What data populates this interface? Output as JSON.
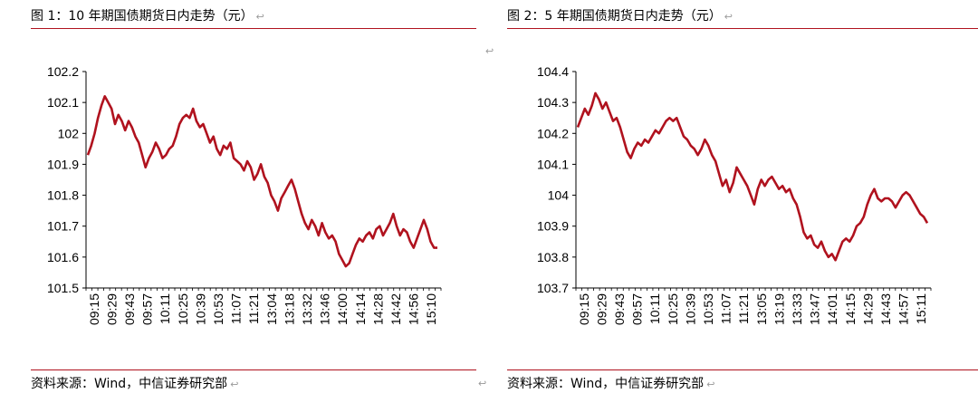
{
  "chart_data": [
    {
      "type": "line",
      "title": "图 1：10 年期国债期货日内走势（元）",
      "source": "资料来源：Wind，中信证券研究部",
      "xlabel": "",
      "ylabel": "",
      "ylim": [
        101.5,
        102.2
      ],
      "yticks": [
        "101.5",
        "101.6",
        "101.7",
        "101.8",
        "101.9",
        "102",
        "102.1",
        "102.2"
      ],
      "xtick_labels": [
        "09:15",
        "09:29",
        "09:43",
        "09:57",
        "10:11",
        "10:25",
        "10:39",
        "10:53",
        "11:07",
        "11:21",
        "13:04",
        "13:18",
        "13:32",
        "13:46",
        "14:00",
        "14:14",
        "14:28",
        "14:42",
        "14:56",
        "15:10"
      ],
      "color": "#b0121e",
      "grid": false,
      "legend": "none",
      "series": [
        {
          "values": [
            101.93,
            101.96,
            102.0,
            102.05,
            102.09,
            102.12,
            102.1,
            102.08,
            102.03,
            102.06,
            102.04,
            102.01,
            102.04,
            102.02,
            101.99,
            101.97,
            101.93,
            101.89,
            101.92,
            101.94,
            101.97,
            101.95,
            101.92,
            101.93,
            101.95,
            101.96,
            101.99,
            102.03,
            102.05,
            102.06,
            102.05,
            102.08,
            102.04,
            102.02,
            102.03,
            102.0,
            101.97,
            101.99,
            101.95,
            101.93,
            101.96,
            101.95,
            101.97,
            101.92,
            101.91,
            101.9,
            101.88,
            101.91,
            101.89,
            101.85,
            101.87,
            101.9,
            101.86,
            101.84,
            101.8,
            101.78,
            101.75,
            101.79,
            101.81,
            101.83,
            101.85,
            101.82,
            101.78,
            101.74,
            101.71,
            101.69,
            101.72,
            101.7,
            101.67,
            101.71,
            101.68,
            101.66,
            101.67,
            101.65,
            101.61,
            101.59,
            101.57,
            101.58,
            101.61,
            101.64,
            101.66,
            101.65,
            101.67,
            101.68,
            101.66,
            101.69,
            101.7,
            101.67,
            101.69,
            101.71,
            101.74,
            101.7,
            101.67,
            101.69,
            101.68,
            101.65,
            101.63,
            101.66,
            101.69,
            101.72,
            101.69,
            101.65,
            101.63,
            101.63
          ]
        }
      ]
    },
    {
      "type": "line",
      "title": "图 2：5 年期国债期货日内走势（元）",
      "source": "资料来源：Wind，中信证券研究部",
      "xlabel": "",
      "ylabel": "",
      "ylim": [
        103.7,
        104.4
      ],
      "yticks": [
        "103.7",
        "103.8",
        "103.9",
        "104",
        "104.1",
        "104.2",
        "104.3",
        "104.4"
      ],
      "xtick_labels": [
        "09:15",
        "09:29",
        "09:43",
        "09:57",
        "10:11",
        "10:25",
        "10:39",
        "10:53",
        "11:07",
        "11:21",
        "13:05",
        "13:19",
        "13:33",
        "13:47",
        "14:01",
        "14:15",
        "14:29",
        "14:43",
        "14:57",
        "15:11"
      ],
      "color": "#b0121e",
      "grid": false,
      "legend": "none",
      "series": [
        {
          "values": [
            104.22,
            104.25,
            104.28,
            104.26,
            104.29,
            104.33,
            104.31,
            104.28,
            104.3,
            104.27,
            104.24,
            104.25,
            104.22,
            104.18,
            104.14,
            104.12,
            104.15,
            104.17,
            104.16,
            104.18,
            104.17,
            104.19,
            104.21,
            104.2,
            104.22,
            104.24,
            104.25,
            104.24,
            104.25,
            104.22,
            104.19,
            104.18,
            104.16,
            104.15,
            104.13,
            104.15,
            104.18,
            104.16,
            104.13,
            104.11,
            104.07,
            104.03,
            104.05,
            104.01,
            104.04,
            104.09,
            104.07,
            104.05,
            104.03,
            104.0,
            103.97,
            104.02,
            104.05,
            104.03,
            104.05,
            104.06,
            104.04,
            104.02,
            104.03,
            104.01,
            104.02,
            103.99,
            103.97,
            103.93,
            103.88,
            103.86,
            103.87,
            103.84,
            103.83,
            103.85,
            103.82,
            103.8,
            103.81,
            103.79,
            103.82,
            103.85,
            103.86,
            103.85,
            103.87,
            103.9,
            103.91,
            103.93,
            103.97,
            104.0,
            104.02,
            103.99,
            103.98,
            103.99,
            103.99,
            103.98,
            103.96,
            103.98,
            104.0,
            104.01,
            104.0,
            103.98,
            103.96,
            103.94,
            103.93,
            103.91
          ]
        }
      ]
    }
  ],
  "left_marker": "↩",
  "mid_marker": "↩",
  "bottom_mid_marker": "↩"
}
